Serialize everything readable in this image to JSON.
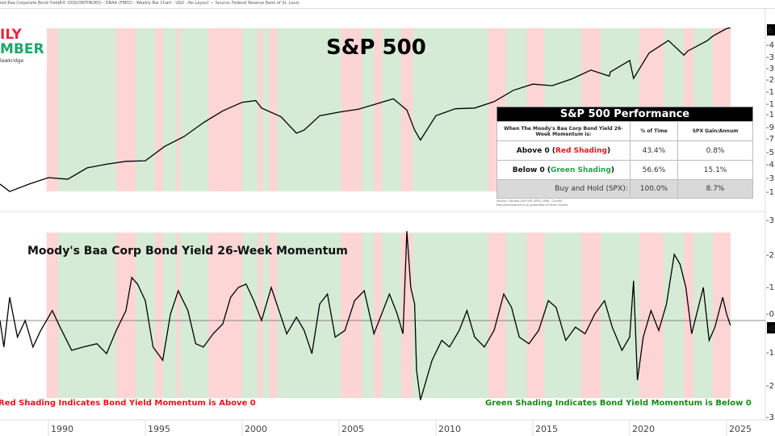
{
  "header": {
    "text": "ied Baa Corporate Bond YieldÂ® (DISCONTINUED) - DBAA (FRED) - Weekly Bar Chart - USD - No Layout — Source: Federal Reserve Bank of St. Louis"
  },
  "logo": {
    "line1": "ILY",
    "line2": "MBER",
    "line3": "lawkridge"
  },
  "colors": {
    "red_shade": "#fdd5d5",
    "green_shade": "#d5ebd5",
    "line": "#000000",
    "red_text": "#e8141c",
    "green_text": "#168a16"
  },
  "table": {
    "title": "S&P 500 Performance",
    "header": [
      "When The Moody's Baa Corp Bond Yield 26-Week Momentum is:",
      "% of Time",
      "SPX Gain/Annum"
    ],
    "rows": [
      {
        "pre": "Above 0 (",
        "colored": "Red Shading",
        "post": ")",
        "time": "43.4%",
        "gain": "0.8%"
      },
      {
        "pre": "Below 0 (",
        "colored": "Green Shading",
        "post": ")",
        "time": "56.6%",
        "gain": "15.1%"
      }
    ],
    "buy_hold": {
      "label": "Buy and Hold (SPX):",
      "time": "100.0%",
      "gain": "8.7%"
    },
    "footnote1": "Source: Optuma S&P 500 (SPX) 1986 - Current",
    "footnote2": "Past performance is no guarantee of future results"
  },
  "chart_data": [
    {
      "type": "line",
      "title": "S&P 500",
      "yscale": "log",
      "xlim": [
        1987.5,
        2027
      ],
      "right_axis_labels": [
        "6",
        "4",
        "3",
        "3",
        "2",
        "1",
        "1",
        "1",
        "9",
        "7",
        "5",
        "4",
        "3",
        "1"
      ],
      "x": [
        1987.5,
        1988,
        1989,
        1990,
        1991,
        1992,
        1993,
        1994,
        1995,
        1996,
        1997,
        1998,
        1999,
        2000,
        2000.7,
        2001,
        2002,
        2002.8,
        2003.2,
        2004,
        2005,
        2006,
        2007,
        2007.8,
        2008.5,
        2008.9,
        2009.2,
        2010,
        2011,
        2012,
        2013,
        2014,
        2015,
        2016,
        2017,
        2018,
        2018.95,
        2019,
        2020,
        2020.2,
        2021,
        2022,
        2022.8,
        2023,
        2024,
        2024.3,
        2025,
        2025.2
      ],
      "values": [
        300,
        260,
        300,
        340,
        330,
        410,
        440,
        465,
        470,
        620,
        750,
        980,
        1230,
        1450,
        1500,
        1300,
        1100,
        800,
        850,
        1120,
        1200,
        1270,
        1420,
        1550,
        1250,
        850,
        700,
        1120,
        1280,
        1300,
        1470,
        1830,
        2060,
        2000,
        2270,
        2700,
        2400,
        2600,
        3250,
        2300,
        3750,
        4770,
        3600,
        3900,
        4750,
        5200,
        6000,
        6100
      ]
    },
    {
      "type": "line",
      "title": "Moody's Baa Corp Bond Yield 26-Week Momentum",
      "ylim": [
        -3,
        3
      ],
      "xlim": [
        1987.5,
        2027
      ],
      "right_axis_labels": [
        "3.",
        "2.",
        "1.",
        "0",
        "-1",
        "-2",
        "-3"
      ],
      "last_value_label": "-0",
      "x_tick_labels": [
        "1990",
        "1995",
        "2000",
        "2005",
        "2010",
        "2015",
        "2020",
        "2025"
      ],
      "x": [
        1987.5,
        1987.7,
        1988.0,
        1988.4,
        1988.8,
        1989.2,
        1989.6,
        1990.2,
        1990.6,
        1991.2,
        1991.8,
        1992.5,
        1993.0,
        1993.5,
        1994.0,
        1994.3,
        1994.6,
        1995.0,
        1995.4,
        1995.9,
        1996.3,
        1996.7,
        1997.2,
        1997.6,
        1998.0,
        1998.5,
        1999.0,
        1999.4,
        1999.8,
        2000.2,
        2000.6,
        2001.0,
        2001.5,
        2001.9,
        2002.3,
        2002.8,
        2003.2,
        2003.6,
        2004.0,
        2004.4,
        2004.8,
        2005.3,
        2005.8,
        2006.3,
        2006.8,
        2007.2,
        2007.6,
        2008.0,
        2008.3,
        2008.5,
        2008.7,
        2008.9,
        2009.0,
        2009.2,
        2009.5,
        2009.8,
        2010.3,
        2010.7,
        2011.2,
        2011.6,
        2012.0,
        2012.5,
        2013.0,
        2013.5,
        2013.9,
        2014.3,
        2014.8,
        2015.3,
        2015.8,
        2016.2,
        2016.7,
        2017.2,
        2017.7,
        2018.2,
        2018.7,
        2019.1,
        2019.6,
        2020.0,
        2020.2,
        2020.4,
        2020.7,
        2021.1,
        2021.5,
        2021.9,
        2022.3,
        2022.6,
        2022.9,
        2023.2,
        2023.5,
        2023.8,
        2024.1,
        2024.4,
        2024.8,
        2025.0,
        2025.2
      ],
      "values": [
        0.0,
        -0.8,
        0.7,
        -0.5,
        0.0,
        -0.8,
        -0.3,
        0.3,
        -0.2,
        -0.9,
        -0.8,
        -0.7,
        -1.0,
        -0.3,
        0.3,
        1.3,
        1.1,
        0.6,
        -0.8,
        -1.2,
        0.2,
        0.9,
        0.3,
        -0.7,
        -0.8,
        -0.4,
        -0.1,
        0.7,
        1.0,
        1.1,
        0.6,
        0.0,
        1.0,
        0.3,
        -0.4,
        0.1,
        -0.3,
        -1.0,
        0.5,
        0.8,
        -0.5,
        -0.3,
        0.6,
        0.9,
        -0.4,
        0.2,
        0.8,
        0.2,
        -0.4,
        2.7,
        1.0,
        0.5,
        -1.5,
        -2.4,
        -1.8,
        -1.2,
        -0.6,
        -0.8,
        -0.3,
        0.3,
        -0.5,
        -0.8,
        -0.3,
        0.8,
        0.4,
        -0.5,
        -0.7,
        -0.3,
        0.6,
        0.4,
        -0.6,
        -0.2,
        -0.4,
        0.2,
        0.6,
        -0.2,
        -0.9,
        -0.5,
        1.2,
        -1.8,
        -0.5,
        0.3,
        -0.3,
        0.5,
        2.0,
        1.7,
        1.0,
        -0.4,
        0.3,
        1.0,
        -0.6,
        -0.2,
        0.7,
        0.2,
        -0.15
      ],
      "red_periods": [
        [
          1989.9,
          1990.5
        ],
        [
          1993.5,
          1994.5
        ],
        [
          1995.5,
          1995.9
        ],
        [
          1996.6,
          1996.8
        ],
        [
          1998.25,
          2000.0
        ],
        [
          2000.8,
          2001.05
        ],
        [
          2001.4,
          2001.8
        ],
        [
          2005.1,
          2006.2
        ],
        [
          2006.8,
          2007.2
        ],
        [
          2008.2,
          2008.8
        ],
        [
          2012.7,
          2013.6
        ],
        [
          2014.7,
          2015.6
        ],
        [
          2017.5,
          2018.5
        ],
        [
          2020.5,
          2021.75
        ],
        [
          2022.8,
          2023.3
        ],
        [
          2024.3,
          2025.2
        ]
      ],
      "shading_range": [
        1990,
        2025.2
      ],
      "annotations": {
        "red": "Red Shading Indicates Bond Yield Momentum is Above 0",
        "green": "Green Shading Indicates Bond Yield Momentum is Below 0"
      }
    }
  ]
}
